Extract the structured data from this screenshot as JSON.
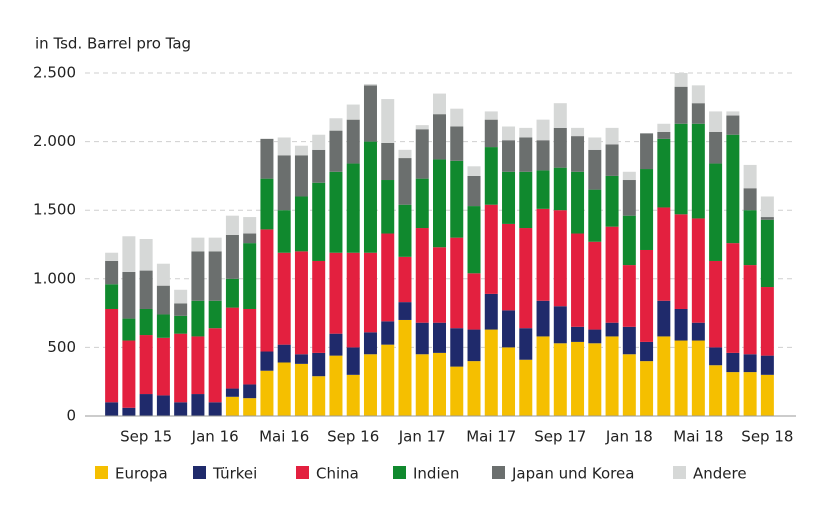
{
  "chart_data": {
    "type": "stacked_bar",
    "y_axis_label": "in Tsd. Barrel pro Tag",
    "categories": [
      null,
      null,
      "Sep 15",
      null,
      null,
      null,
      "Jan 16",
      null,
      null,
      null,
      "Mai 16",
      null,
      null,
      null,
      "Sep 16",
      null,
      null,
      null,
      "Jan 17",
      null,
      null,
      null,
      "Mai 17",
      null,
      null,
      null,
      "Sep 17",
      null,
      null,
      null,
      "Jan 18",
      null,
      null,
      null,
      "Mai 18",
      null,
      null,
      null,
      "Sep 18"
    ],
    "series": [
      {
        "name": "Europa",
        "color": "#f5bf00",
        "values": [
          0,
          0,
          0,
          0,
          0,
          0,
          0,
          140,
          130,
          330,
          390,
          380,
          290,
          440,
          300,
          450,
          520,
          700,
          450,
          460,
          360,
          400,
          630,
          500,
          410,
          580,
          530,
          540,
          530,
          580,
          450,
          400,
          580,
          550,
          550,
          370,
          320,
          320,
          300
        ]
      },
      {
        "name": "Türkei",
        "color": "#1f2a6b",
        "values": [
          100,
          60,
          160,
          150,
          100,
          160,
          100,
          60,
          100,
          140,
          130,
          70,
          170,
          160,
          200,
          160,
          170,
          130,
          230,
          220,
          280,
          230,
          260,
          270,
          230,
          260,
          270,
          110,
          100,
          100,
          200,
          140,
          260,
          230,
          130,
          130,
          140,
          130,
          140
        ]
      },
      {
        "name": "China",
        "color": "#e3203f",
        "values": [
          680,
          490,
          430,
          420,
          500,
          420,
          540,
          590,
          550,
          890,
          670,
          750,
          670,
          590,
          690,
          580,
          640,
          330,
          690,
          550,
          660,
          410,
          650,
          630,
          730,
          670,
          700,
          680,
          640,
          700,
          450,
          670,
          680,
          690,
          760,
          630,
          800,
          650,
          500
        ]
      },
      {
        "name": "Indien",
        "color": "#10892e",
        "values": [
          180,
          160,
          190,
          170,
          130,
          260,
          200,
          210,
          480,
          370,
          310,
          400,
          570,
          590,
          650,
          810,
          390,
          380,
          360,
          640,
          560,
          490,
          420,
          380,
          410,
          280,
          310,
          450,
          380,
          370,
          360,
          590,
          500,
          660,
          690,
          710,
          790,
          400,
          490
        ]
      },
      {
        "name": "Japan und Korea",
        "color": "#6b6f6e",
        "values": [
          170,
          340,
          280,
          210,
          90,
          360,
          360,
          320,
          70,
          290,
          400,
          300,
          240,
          300,
          320,
          410,
          270,
          340,
          360,
          330,
          250,
          220,
          200,
          230,
          250,
          220,
          290,
          260,
          290,
          230,
          260,
          260,
          50,
          270,
          150,
          230,
          140,
          160,
          20
        ]
      },
      {
        "name": "Andere",
        "color": "#d6d8d7",
        "values": [
          60,
          260,
          230,
          160,
          100,
          100,
          100,
          140,
          120,
          0,
          130,
          70,
          110,
          90,
          110,
          10,
          320,
          60,
          30,
          150,
          130,
          70,
          60,
          100,
          70,
          150,
          180,
          60,
          90,
          120,
          60,
          0,
          60,
          100,
          130,
          150,
          30,
          170,
          150
        ]
      }
    ],
    "ylim": [
      0,
      2500
    ],
    "yticks": [
      0,
      500,
      {
        "value": 1000,
        "label": "1.000"
      },
      {
        "value": 1500,
        "label": "1.500"
      },
      {
        "value": 2000,
        "label": "2.000"
      },
      {
        "value": 2500,
        "label": "2.500"
      }
    ],
    "grid": true,
    "legend": "bottom"
  }
}
